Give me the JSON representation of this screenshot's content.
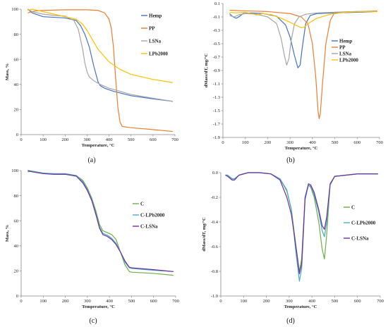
{
  "chart_data": [
    {
      "id": "a",
      "caption": "(a)",
      "type": "line",
      "xlabel": "Temperature, °C",
      "ylabel": "Mass, %",
      "xlim": [
        0,
        700
      ],
      "ylim": [
        0,
        100
      ],
      "xticks": [
        0,
        100,
        200,
        300,
        400,
        500,
        600,
        700
      ],
      "yticks": [
        0,
        20,
        40,
        60,
        80,
        100
      ],
      "ytick_labels": [
        "0",
        "20",
        "40",
        "60",
        "80",
        "100"
      ],
      "legend_position": "right",
      "series": [
        {
          "name": "Hemp",
          "color": "#4472C4",
          "x": [
            30,
            50,
            100,
            150,
            200,
            250,
            270,
            290,
            310,
            330,
            350,
            360,
            380,
            420,
            500,
            600,
            690
          ],
          "y": [
            100,
            97,
            94,
            93.5,
            93,
            91,
            87,
            80,
            70,
            55,
            42,
            39,
            37,
            34.5,
            31,
            28.5,
            26.5
          ]
        },
        {
          "name": "PP",
          "color": "#ED7D31",
          "x": [
            30,
            60,
            100,
            200,
            300,
            350,
            380,
            400,
            410,
            420,
            430,
            440,
            450,
            460,
            480,
            500,
            600,
            690
          ],
          "y": [
            97,
            98.5,
            99,
            99.5,
            99.5,
            99,
            97,
            92,
            85,
            70,
            45,
            22,
            10,
            6.5,
            6,
            5.5,
            4,
            2.5
          ]
        },
        {
          "name": "LSNa",
          "color": "#A5A5A5",
          "x": [
            30,
            50,
            100,
            150,
            200,
            240,
            260,
            280,
            290,
            300,
            310,
            330,
            360,
            400,
            500,
            600,
            690
          ],
          "y": [
            100,
            98,
            96,
            95,
            94.5,
            91,
            84,
            68,
            57,
            50,
            46,
            43,
            40,
            37,
            32,
            29,
            26.5
          ]
        },
        {
          "name": "LPb2000",
          "color": "#FFC000",
          "x": [
            30,
            50,
            100,
            150,
            200,
            250,
            280,
            300,
            320,
            350,
            400,
            450,
            500,
            600,
            690
          ],
          "y": [
            99,
            100,
            98,
            96,
            94,
            92,
            88,
            83,
            77,
            68,
            58,
            52,
            48,
            44,
            41.5
          ]
        }
      ]
    },
    {
      "id": "b",
      "caption": "(b)",
      "type": "line",
      "xlabel": "Temperature, °C",
      "ylabel": "dMass/dT, mg/°C",
      "xlim": [
        0,
        700
      ],
      "ylim": [
        -1.9,
        0.1
      ],
      "xticks": [
        0,
        100,
        200,
        300,
        400,
        500,
        600,
        700
      ],
      "yticks": [
        0.1,
        -0.1,
        -0.3,
        -0.5,
        -0.7,
        -0.9,
        -1.1,
        -1.3,
        -1.5,
        -1.7,
        -1.9
      ],
      "ytick_labels": [
        "0.1",
        "-0.1",
        "-0.3",
        "-0.5",
        "-0.7",
        "-0.9",
        "-1.1",
        "-1.3",
        "-1.5",
        "-1.7",
        "-1.9"
      ],
      "legend_position": "right",
      "series": [
        {
          "name": "Hemp",
          "color": "#4472C4",
          "x": [
            30,
            45,
            60,
            75,
            90,
            120,
            180,
            240,
            280,
            300,
            320,
            335,
            345,
            355,
            370,
            390,
            420,
            500,
            600,
            690
          ],
          "y": [
            -0.05,
            -0.1,
            -0.12,
            -0.09,
            -0.05,
            -0.04,
            -0.05,
            -0.09,
            -0.22,
            -0.4,
            -0.68,
            -0.86,
            -0.82,
            -0.55,
            -0.2,
            -0.08,
            -0.05,
            -0.04,
            -0.03,
            -0.02
          ]
        },
        {
          "name": "PP",
          "color": "#ED7D31",
          "x": [
            30,
            100,
            200,
            300,
            350,
            380,
            400,
            415,
            425,
            430,
            435,
            445,
            460,
            480,
            500,
            600,
            690
          ],
          "y": [
            0,
            -0.01,
            -0.02,
            -0.05,
            -0.1,
            -0.2,
            -0.5,
            -1.0,
            -1.5,
            -1.62,
            -1.55,
            -1.1,
            -0.5,
            -0.15,
            -0.03,
            -0.02,
            -0.01
          ]
        },
        {
          "name": "LSNa",
          "color": "#A5A5A5",
          "x": [
            30,
            50,
            70,
            100,
            150,
            200,
            240,
            260,
            275,
            285,
            295,
            305,
            320,
            340,
            370,
            420,
            500,
            600,
            690
          ],
          "y": [
            -0.08,
            -0.1,
            -0.07,
            -0.05,
            -0.06,
            -0.1,
            -0.2,
            -0.42,
            -0.68,
            -0.82,
            -0.72,
            -0.45,
            -0.2,
            -0.1,
            -0.06,
            -0.04,
            -0.03,
            -0.02,
            -0.02
          ]
        },
        {
          "name": "LPb2000",
          "color": "#FFC000",
          "x": [
            30,
            60,
            100,
            150,
            180,
            220,
            260,
            300,
            330,
            350,
            365,
            380,
            420,
            480,
            550,
            620,
            690
          ],
          "y": [
            -0.03,
            -0.04,
            -0.03,
            -0.07,
            -0.05,
            -0.07,
            -0.12,
            -0.18,
            -0.23,
            -0.26,
            -0.25,
            -0.2,
            -0.12,
            -0.06,
            -0.03,
            -0.02,
            -0.02
          ]
        }
      ]
    },
    {
      "id": "c",
      "caption": "(c)",
      "type": "line",
      "xlabel": "Temperature, °C",
      "ylabel": "Mass, %",
      "xlim": [
        0,
        700
      ],
      "ylim": [
        0,
        100
      ],
      "xticks": [
        0,
        100,
        200,
        300,
        400,
        500,
        600,
        700
      ],
      "yticks": [
        0,
        20,
        40,
        60,
        80,
        100
      ],
      "ytick_labels": [
        "0",
        "20",
        "40",
        "60",
        "80",
        "100"
      ],
      "legend_position": "right",
      "series": [
        {
          "name": "C",
          "color": "#70AD47",
          "x": [
            30,
            50,
            100,
            150,
            200,
            250,
            280,
            300,
            320,
            340,
            355,
            370,
            390,
            410,
            430,
            450,
            470,
            490,
            500,
            600,
            690
          ],
          "y": [
            99,
            99.5,
            98,
            97.5,
            97.5,
            96,
            92,
            86,
            78,
            67,
            57,
            52,
            50.5,
            49,
            45,
            35,
            25,
            19.5,
            19,
            18,
            16.5
          ]
        },
        {
          "name": "C-LPb2000",
          "color": "#4BACC6",
          "x": [
            30,
            50,
            100,
            150,
            200,
            250,
            280,
            300,
            320,
            340,
            355,
            370,
            390,
            410,
            430,
            450,
            470,
            490,
            500,
            600,
            690
          ],
          "y": [
            100,
            99.5,
            98,
            97.5,
            97.5,
            96,
            91,
            85,
            77,
            65,
            55,
            50,
            48.5,
            46,
            42,
            35,
            27,
            22.5,
            22,
            20.5,
            19.5
          ]
        },
        {
          "name": "C-LSNa",
          "color": "#7030A0",
          "x": [
            30,
            50,
            100,
            150,
            200,
            250,
            280,
            300,
            320,
            340,
            355,
            370,
            390,
            410,
            430,
            450,
            470,
            490,
            500,
            600,
            690
          ],
          "y": [
            100,
            99,
            97.5,
            97,
            97,
            95.5,
            90,
            84,
            76,
            64,
            54,
            49,
            47.5,
            45,
            41,
            35,
            28,
            23,
            22.5,
            21,
            19.5
          ]
        }
      ]
    },
    {
      "id": "d",
      "caption": "(d)",
      "type": "line",
      "xlabel": "Temperature, °C",
      "ylabel": "dMass/dT, mg/°C",
      "xlim": [
        0,
        700
      ],
      "ylim": [
        -1.0,
        0.0
      ],
      "xticks": [
        0,
        100,
        200,
        300,
        400,
        500,
        600,
        700
      ],
      "yticks": [
        0.0,
        -0.2,
        -0.4,
        -0.6,
        -0.8,
        -1.0
      ],
      "ytick_labels": [
        "0.0",
        "-0.2",
        "-0.4",
        "-0.6",
        "-0.8",
        "-1.0"
      ],
      "legend_position": "right",
      "series": [
        {
          "name": "C",
          "color": "#70AD47",
          "x": [
            20,
            30,
            50,
            60,
            80,
            120,
            170,
            220,
            260,
            290,
            310,
            330,
            345,
            355,
            370,
            385,
            395,
            410,
            430,
            445,
            455,
            465,
            480,
            500,
            600,
            690
          ],
          "y": [
            -0.02,
            -0.02,
            -0.05,
            -0.05,
            -0.02,
            0.0,
            0.0,
            -0.01,
            -0.05,
            -0.15,
            -0.3,
            -0.6,
            -0.8,
            -0.7,
            -0.2,
            -0.1,
            -0.12,
            -0.2,
            -0.4,
            -0.62,
            -0.7,
            -0.5,
            -0.1,
            -0.03,
            -0.01,
            -0.01
          ]
        },
        {
          "name": "C-LPb2000",
          "color": "#4BACC6",
          "x": [
            20,
            30,
            50,
            60,
            80,
            120,
            170,
            220,
            260,
            290,
            310,
            330,
            345,
            355,
            370,
            385,
            395,
            410,
            430,
            445,
            455,
            465,
            480,
            500,
            600,
            690
          ],
          "y": [
            -0.02,
            -0.02,
            -0.05,
            -0.05,
            -0.02,
            0.0,
            0.0,
            -0.01,
            -0.05,
            -0.14,
            -0.3,
            -0.65,
            -0.88,
            -0.78,
            -0.22,
            -0.1,
            -0.11,
            -0.18,
            -0.32,
            -0.47,
            -0.52,
            -0.4,
            -0.1,
            -0.03,
            -0.01,
            -0.01
          ]
        },
        {
          "name": "C-LSNa",
          "color": "#7030A0",
          "x": [
            20,
            30,
            50,
            60,
            80,
            120,
            170,
            220,
            260,
            290,
            310,
            330,
            345,
            355,
            370,
            385,
            395,
            410,
            430,
            445,
            455,
            465,
            480,
            500,
            600,
            690
          ],
          "y": [
            -0.02,
            -0.03,
            -0.06,
            -0.06,
            -0.02,
            0.0,
            0.0,
            -0.01,
            -0.06,
            -0.2,
            -0.34,
            -0.6,
            -0.82,
            -0.74,
            -0.2,
            -0.09,
            -0.1,
            -0.16,
            -0.3,
            -0.43,
            -0.46,
            -0.36,
            -0.09,
            -0.03,
            -0.01,
            -0.01
          ]
        }
      ]
    }
  ]
}
